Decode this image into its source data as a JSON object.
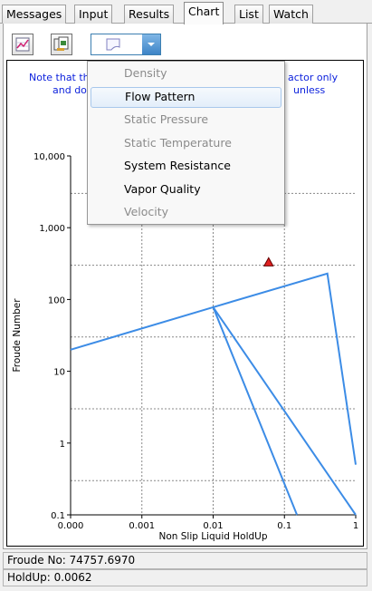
{
  "tabs": [
    {
      "label": "Messages"
    },
    {
      "label": "Input"
    },
    {
      "label": "Results"
    },
    {
      "label": "Chart"
    },
    {
      "label": "List"
    },
    {
      "label": "Watch"
    }
  ],
  "active_tab": "Chart",
  "toolbar": {
    "chart_button_icon": "chart-icon",
    "copy_button_icon": "copy-icon",
    "selector_icon": "flow-pattern-icon"
  },
  "chart": {
    "note_line1_left": "Note that th",
    "note_line1_right": "actor only",
    "note_line2_left": "and doe",
    "note_line2_right": "unless",
    "note_color": "#0a1fdc",
    "line_color": "#3c8ce6",
    "marker_color": "#e02020"
  },
  "menu": {
    "items": [
      {
        "label": "Density",
        "enabled": false
      },
      {
        "label": "Flow Pattern",
        "enabled": true,
        "highlighted": true
      },
      {
        "label": "Static Pressure",
        "enabled": false
      },
      {
        "label": "Static Temperature",
        "enabled": false
      },
      {
        "label": "System Resistance",
        "enabled": true
      },
      {
        "label": "Vapor Quality",
        "enabled": true
      },
      {
        "label": "Velocity",
        "enabled": false
      }
    ]
  },
  "chart_data": {
    "type": "line",
    "xlabel": "Non Slip Liquid HoldUp",
    "ylabel": "Froude Number",
    "x_ticks": [
      "0.000",
      "0.001",
      "0.01",
      "0.1",
      "1"
    ],
    "y_ticks": [
      "10,000",
      "1,000",
      "100",
      "10",
      "1",
      "0.1"
    ],
    "x_scale": "log",
    "y_scale": "log",
    "xlim": [
      0.0001,
      1
    ],
    "ylim": [
      0.1,
      10000
    ],
    "grid": true,
    "series": [
      {
        "points": [
          [
            0.0001,
            20
          ],
          [
            0.01,
            78
          ],
          [
            0.4,
            230
          ],
          [
            1,
            0.5
          ]
        ]
      },
      {
        "points": [
          [
            0.01,
            78
          ],
          [
            0.15,
            0.1
          ]
        ]
      },
      {
        "points": [
          [
            0.01,
            78
          ],
          [
            1,
            0.1
          ]
        ]
      }
    ],
    "marker": {
      "x": 0.06,
      "y": 330,
      "shape": "triangle"
    }
  },
  "status": {
    "froude": "Froude No: 74757.6970",
    "holdup": "HoldUp: 0.0062"
  }
}
